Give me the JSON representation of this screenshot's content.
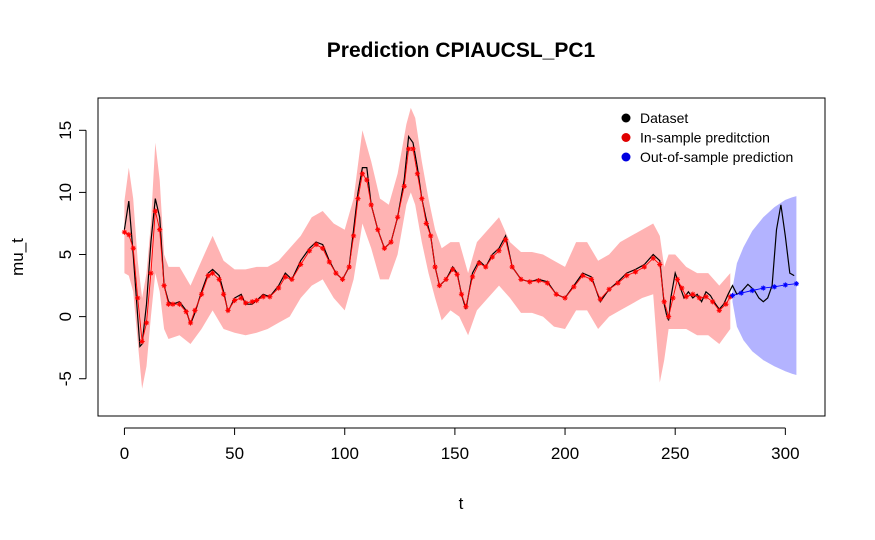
{
  "chart_data": {
    "type": "line",
    "title": "Prediction CPIAUCSL_PC1",
    "xlabel": "t",
    "ylabel": "mu_t",
    "xlim": [
      -12,
      318
    ],
    "ylim": [
      -8,
      17.6
    ],
    "xticks": [
      0,
      50,
      100,
      150,
      200,
      250,
      300
    ],
    "yticks": [
      -5,
      0,
      5,
      10,
      15
    ],
    "grid": false,
    "legend_position": "top-right",
    "legend": [
      {
        "label": "Dataset",
        "color": "#000000"
      },
      {
        "label": "In-sample preditction",
        "color": "#e00000"
      },
      {
        "label": "Out-of-sample prediction",
        "color": "#0000e0"
      }
    ],
    "colors": {
      "dataset": "#000000",
      "insample": "#ff0000",
      "insample_band": "#ffb3b3",
      "outsample": "#0000ff",
      "outsample_band": "#b3b3ff"
    },
    "series": [
      {
        "key": "dataset",
        "t": [
          0,
          2,
          4,
          6,
          7,
          8,
          10,
          12,
          14,
          16,
          18,
          20,
          22,
          25,
          28,
          30,
          32,
          35,
          38,
          40,
          43,
          45,
          47,
          50,
          53,
          55,
          58,
          60,
          63,
          66,
          70,
          73,
          76,
          80,
          84,
          87,
          90,
          93,
          96,
          99,
          102,
          104,
          106,
          108,
          110,
          112,
          115,
          118,
          121,
          124,
          127,
          129,
          131,
          133,
          135,
          137,
          139,
          141,
          143,
          146,
          149,
          151,
          153,
          155,
          158,
          161,
          164,
          167,
          170,
          173,
          176,
          180,
          184,
          188,
          192,
          196,
          200,
          204,
          208,
          212,
          216,
          220,
          224,
          228,
          232,
          236,
          240,
          243,
          245,
          246,
          247,
          248,
          250,
          252,
          254,
          256,
          258,
          260,
          262,
          264,
          266,
          268,
          270,
          272,
          274,
          276,
          278,
          280,
          283,
          286,
          288,
          290,
          292,
          294,
          296,
          298,
          300,
          302,
          304
        ],
        "values": [
          7,
          9.3,
          5,
          0,
          -2.4,
          -2.2,
          1,
          6,
          9.5,
          8,
          2.5,
          1.2,
          1,
          1.2,
          0.5,
          -0.6,
          0.3,
          2,
          3.5,
          3.8,
          3.3,
          2,
          0.4,
          1.5,
          1.8,
          1,
          1,
          1.3,
          1.8,
          1.6,
          2.5,
          3.5,
          3,
          4.5,
          5.5,
          6,
          5.8,
          4.5,
          3.5,
          3,
          4,
          7,
          10,
          12,
          12,
          9,
          7,
          5.5,
          6,
          8,
          11,
          14.5,
          14,
          12,
          9.5,
          7.8,
          6.5,
          4,
          2.5,
          3,
          4,
          3.5,
          1.8,
          0.6,
          3.5,
          4.5,
          4,
          5,
          5.5,
          6.5,
          4,
          3,
          2.8,
          3,
          2.8,
          1.8,
          1.5,
          2.5,
          3.5,
          3.2,
          1.2,
          2.2,
          2.8,
          3.5,
          3.8,
          4.2,
          5,
          4.5,
          1,
          0.2,
          -0.3,
          1.5,
          3.5,
          2.5,
          1.5,
          2,
          1.5,
          1.8,
          1.2,
          2,
          1.7,
          1.1,
          0.6,
          1,
          1.8,
          2.5,
          1.8,
          2,
          2.6,
          2.1,
          1.5,
          1.2,
          1.5,
          2.5,
          7,
          9,
          6.5,
          3.5,
          3.3
        ]
      },
      {
        "key": "insample",
        "t": [
          0,
          2,
          4,
          6,
          8,
          10,
          12,
          14,
          16,
          18,
          20,
          22,
          25,
          28,
          30,
          32,
          35,
          38,
          40,
          43,
          45,
          47,
          50,
          53,
          55,
          58,
          60,
          63,
          66,
          70,
          73,
          76,
          80,
          84,
          87,
          90,
          93,
          96,
          99,
          102,
          104,
          106,
          108,
          110,
          112,
          115,
          118,
          121,
          124,
          127,
          129,
          131,
          133,
          135,
          137,
          139,
          141,
          143,
          146,
          149,
          151,
          153,
          155,
          158,
          161,
          164,
          167,
          170,
          173,
          176,
          180,
          184,
          188,
          192,
          196,
          200,
          204,
          208,
          212,
          216,
          220,
          224,
          228,
          232,
          236,
          240,
          243,
          245,
          247,
          249,
          251,
          253,
          255,
          258,
          261,
          264,
          267,
          270,
          273,
          275
        ],
        "values": [
          6.8,
          6.6,
          5.5,
          1.5,
          -2,
          -0.5,
          3.5,
          8.5,
          7,
          2.5,
          1,
          1,
          1,
          0.4,
          -0.5,
          0.5,
          1.8,
          3.3,
          3.5,
          3,
          1.8,
          0.5,
          1.3,
          1.5,
          1.1,
          1.2,
          1.3,
          1.6,
          1.6,
          2.3,
          3.2,
          3,
          4.2,
          5.3,
          5.8,
          5.5,
          4.4,
          3.5,
          3,
          4,
          6.5,
          9.5,
          11.5,
          11,
          9,
          7,
          5.5,
          6,
          8,
          10.5,
          13.5,
          13.5,
          11.5,
          9.5,
          7.5,
          6.5,
          4,
          2.5,
          3,
          3.8,
          3.4,
          1.8,
          0.8,
          3.2,
          4.3,
          4,
          4.8,
          5.3,
          6.2,
          4,
          3,
          2.8,
          2.9,
          2.7,
          1.8,
          1.5,
          2.4,
          3.3,
          3,
          1.4,
          2.2,
          2.7,
          3.3,
          3.6,
          4,
          4.7,
          4.2,
          1.2,
          0,
          1.5,
          3,
          2.3,
          1.6,
          1.8,
          1.5,
          1.6,
          1.2,
          0.5,
          1,
          1.6
        ]
      },
      {
        "key": "outsample",
        "t": [
          276,
          280,
          285,
          290,
          295,
          300,
          305
        ],
        "values": [
          1.7,
          1.9,
          2.1,
          2.3,
          2.4,
          2.55,
          2.65
        ]
      }
    ],
    "bands": [
      {
        "key": "insample_band",
        "t": [
          0,
          2,
          4,
          6,
          8,
          10,
          12,
          14,
          16,
          18,
          20,
          25,
          30,
          35,
          40,
          45,
          50,
          55,
          60,
          65,
          70,
          75,
          80,
          85,
          90,
          95,
          100,
          104,
          108,
          112,
          116,
          120,
          124,
          128,
          130,
          132,
          135,
          138,
          141,
          144,
          148,
          152,
          156,
          160,
          165,
          170,
          175,
          180,
          185,
          190,
          195,
          200,
          205,
          210,
          215,
          220,
          225,
          230,
          235,
          240,
          243,
          245,
          247,
          250,
          255,
          260,
          265,
          270,
          275
        ],
        "lower": [
          3.5,
          3.3,
          2,
          -2,
          -5.8,
          -4,
          0,
          3.5,
          2,
          -1,
          -1.8,
          -1.5,
          -2.2,
          -1,
          0.5,
          -1,
          -1.3,
          -1.5,
          -1.3,
          -1,
          -0.5,
          0,
          1.5,
          2.5,
          3,
          1.5,
          0.5,
          3,
          7.5,
          5.5,
          3,
          3,
          5,
          9,
          10,
          9,
          6,
          3.5,
          1.5,
          -0.3,
          0.5,
          0,
          -1.5,
          0.5,
          1.5,
          2.5,
          1.5,
          0.3,
          0.3,
          0,
          -0.8,
          -1,
          0.5,
          0.5,
          -1,
          0,
          0.5,
          1,
          1.5,
          1.8,
          -5.3,
          -3.5,
          -1,
          -1,
          -1,
          -1.5,
          -1.5,
          -2.2,
          -1
        ],
        "upper": [
          9.3,
          12,
          9.5,
          4.5,
          1.5,
          3.5,
          7.5,
          14,
          11,
          5,
          4,
          4,
          2.5,
          4.5,
          6.5,
          4.5,
          3.8,
          3.8,
          4,
          4,
          4.5,
          5.5,
          6.5,
          8,
          8.5,
          7.5,
          7,
          9.5,
          15,
          12.5,
          9.5,
          9,
          11.5,
          15.5,
          16.8,
          16,
          12.5,
          9.5,
          7,
          5.5,
          6,
          6,
          3.5,
          6,
          7,
          8,
          6,
          5.2,
          5.2,
          5,
          4.5,
          4,
          6,
          6,
          4.5,
          5,
          6,
          6.5,
          7,
          7.5,
          6.5,
          4,
          5,
          5,
          4,
          3.5,
          3.5,
          2.5,
          3.5
        ]
      },
      {
        "key": "outsample_band",
        "t": [
          276,
          278,
          281,
          285,
          290,
          295,
          300,
          303,
          305
        ],
        "lower": [
          1.2,
          -0.8,
          -1.9,
          -2.8,
          -3.5,
          -4,
          -4.4,
          -4.6,
          -4.7
        ],
        "upper": [
          2.3,
          4.3,
          5.6,
          6.9,
          8.0,
          8.8,
          9.4,
          9.6,
          9.7
        ]
      }
    ]
  }
}
